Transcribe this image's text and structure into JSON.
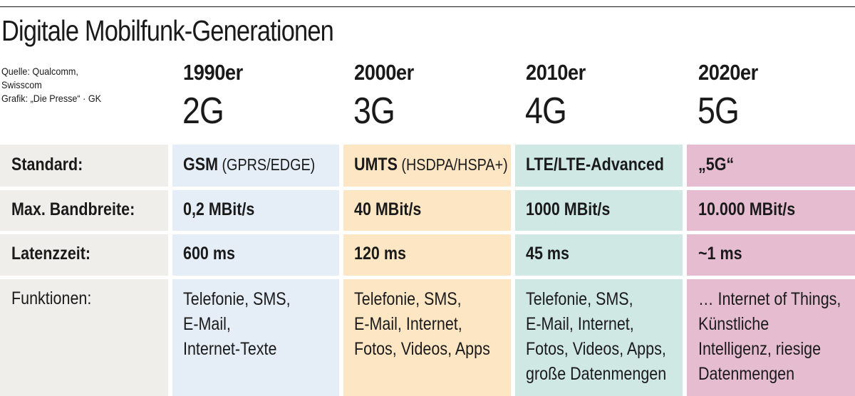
{
  "title": "Digitale Mobilfunk-Generationen",
  "source": {
    "line1": "Quelle: Qualcomm,",
    "line2": "Swisscom",
    "line3": "Grafik: „Die Presse“ · GK"
  },
  "row_labels": {
    "standard": "Standard:",
    "bandwidth": "Max. Bandbreite:",
    "latency": "Latenzzeit:",
    "functions": "Funktionen:"
  },
  "columns": [
    {
      "decade": "1990er",
      "generation": "2G",
      "standard_main": "GSM",
      "standard_extra": " (GPRS/EDGE)",
      "bandwidth": "0,2 MBit/s",
      "latency": "600 ms",
      "functions": [
        "Telefonie, SMS,",
        "E-Mail,",
        "Internet-Texte"
      ]
    },
    {
      "decade": "2000er",
      "generation": "3G",
      "standard_main": "UMTS",
      "standard_extra": " (HSDPA/HSPA+)",
      "bandwidth": "40 MBit/s",
      "latency": "120 ms",
      "functions": [
        "Telefonie, SMS,",
        "E-Mail, Internet,",
        "Fotos, Videos, Apps"
      ]
    },
    {
      "decade": "2010er",
      "generation": "4G",
      "standard_main": "LTE/LTE-Advanced",
      "standard_extra": "",
      "bandwidth": "1000 MBit/s",
      "latency": "45 ms",
      "functions": [
        "Telefonie, SMS,",
        "E-Mail, Internet,",
        "Fotos, Videos, Apps,",
        "große Datenmengen"
      ]
    },
    {
      "decade": "2020er",
      "generation": "5G",
      "standard_main": "„5G“",
      "standard_extra": "",
      "bandwidth": "10.000 MBit/s",
      "latency": "~1 ms",
      "functions": [
        "… Internet of Things,",
        "Künstliche",
        "Intelligenz, riesige",
        "Datenmengen"
      ]
    }
  ],
  "colors": {
    "label_bg": "#f0eeeb",
    "col_2g": "#e5edf6",
    "col_3g": "#fde6c4",
    "col_4g": "#cfe8e4",
    "col_5g": "#e6bdd0"
  }
}
